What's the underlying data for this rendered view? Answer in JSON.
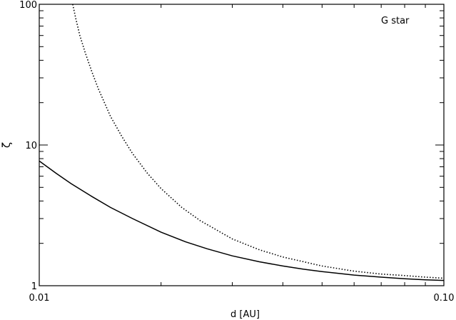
{
  "chart_data": {
    "type": "line",
    "title": "",
    "annotation": "G star",
    "xlabel": "d [AU]",
    "ylabel": "ζ",
    "xscale": "log",
    "yscale": "log",
    "xlim": [
      0.01,
      0.1
    ],
    "ylim": [
      1,
      100
    ],
    "x_tick_labels": [
      {
        "value": 0.01,
        "label": "0.01"
      },
      {
        "value": 0.1,
        "label": "0.10"
      }
    ],
    "y_tick_labels": [
      {
        "value": 1,
        "label": "1"
      },
      {
        "value": 10,
        "label": "10"
      },
      {
        "value": 100,
        "label": "100"
      }
    ],
    "grid": false,
    "legend": "none",
    "series": [
      {
        "style": "solid",
        "color": "#000000",
        "x": [
          0.01,
          0.011,
          0.012,
          0.0135,
          0.015,
          0.017,
          0.02,
          0.023,
          0.026,
          0.03,
          0.035,
          0.04,
          0.045,
          0.05,
          0.06,
          0.07,
          0.08,
          0.09,
          0.1
        ],
        "y": [
          7.7,
          6.3,
          5.3,
          4.3,
          3.6,
          3.0,
          2.4,
          2.05,
          1.83,
          1.63,
          1.48,
          1.38,
          1.31,
          1.26,
          1.19,
          1.15,
          1.12,
          1.1,
          1.09
        ]
      },
      {
        "style": "dotted",
        "color": "#000000",
        "x": [
          0.0121,
          0.0123,
          0.0126,
          0.013,
          0.0135,
          0.014,
          0.015,
          0.016,
          0.017,
          0.0185,
          0.02,
          0.0225,
          0.025,
          0.03,
          0.035,
          0.04,
          0.05,
          0.06,
          0.07,
          0.08,
          0.09,
          0.1
        ],
        "y": [
          100,
          80,
          60,
          45,
          33,
          25,
          16,
          11.5,
          8.7,
          6.3,
          4.9,
          3.6,
          2.9,
          2.15,
          1.8,
          1.6,
          1.38,
          1.27,
          1.21,
          1.18,
          1.15,
          1.13
        ]
      }
    ]
  }
}
